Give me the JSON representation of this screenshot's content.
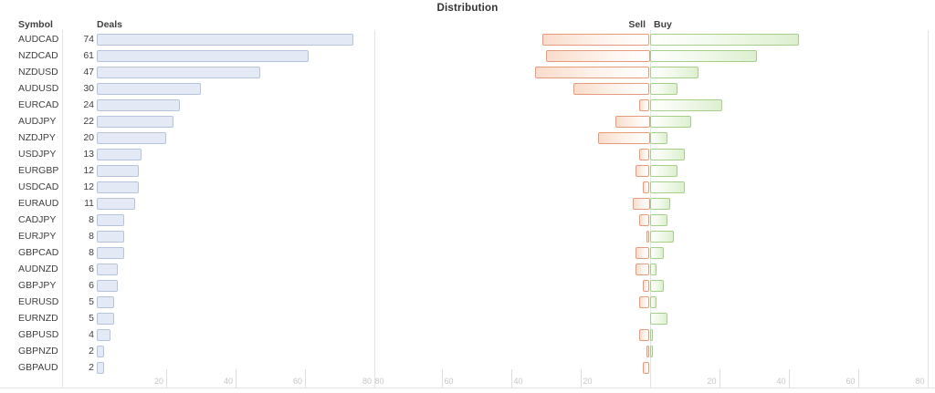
{
  "title": "Distribution",
  "headers": {
    "symbol": "Symbol",
    "deals": "Deals",
    "sell": "Sell",
    "buy": "Buy"
  },
  "colors": {
    "deals_fill": "#e4eaf5",
    "deals_border": "#b3c4db",
    "sell_border": "#e79b7e",
    "sell_fill": "#f9dccb",
    "buy_border": "#a8cf8a",
    "buy_fill": "#ddefd0",
    "grid": "#e4e4e4",
    "tick_label": "#c6c6c6",
    "text": "#3f3f3f"
  },
  "chart_data": {
    "type": "bar",
    "title": "Distribution",
    "columns": [
      "symbol",
      "deals",
      "sell",
      "buy"
    ],
    "legend": [
      "Sell",
      "Buy"
    ],
    "deals_axis": {
      "ticks": [
        20,
        40,
        60,
        80
      ],
      "max": 80
    },
    "distribution_axis": {
      "ticks_left": [
        80,
        60,
        40,
        20
      ],
      "ticks_right": [
        20,
        40,
        60,
        80
      ],
      "max": 80
    },
    "rows": [
      {
        "symbol": "AUDCAD",
        "deals": 74,
        "sell": 31,
        "buy": 43
      },
      {
        "symbol": "NZDCAD",
        "deals": 61,
        "sell": 30,
        "buy": 31
      },
      {
        "symbol": "NZDUSD",
        "deals": 47,
        "sell": 33,
        "buy": 14
      },
      {
        "symbol": "AUDUSD",
        "deals": 30,
        "sell": 22,
        "buy": 8
      },
      {
        "symbol": "EURCAD",
        "deals": 24,
        "sell": 3,
        "buy": 21
      },
      {
        "symbol": "AUDJPY",
        "deals": 22,
        "sell": 10,
        "buy": 12
      },
      {
        "symbol": "NZDJPY",
        "deals": 20,
        "sell": 15,
        "buy": 5
      },
      {
        "symbol": "USDJPY",
        "deals": 13,
        "sell": 3,
        "buy": 10
      },
      {
        "symbol": "EURGBP",
        "deals": 12,
        "sell": 4,
        "buy": 8
      },
      {
        "symbol": "USDCAD",
        "deals": 12,
        "sell": 2,
        "buy": 10
      },
      {
        "symbol": "EURAUD",
        "deals": 11,
        "sell": 5,
        "buy": 6
      },
      {
        "symbol": "CADJPY",
        "deals": 8,
        "sell": 3,
        "buy": 5
      },
      {
        "symbol": "EURJPY",
        "deals": 8,
        "sell": 1,
        "buy": 7
      },
      {
        "symbol": "GBPCAD",
        "deals": 8,
        "sell": 4,
        "buy": 4
      },
      {
        "symbol": "AUDNZD",
        "deals": 6,
        "sell": 4,
        "buy": 2
      },
      {
        "symbol": "GBPJPY",
        "deals": 6,
        "sell": 2,
        "buy": 4
      },
      {
        "symbol": "EURUSD",
        "deals": 5,
        "sell": 3,
        "buy": 2
      },
      {
        "symbol": "EURNZD",
        "deals": 5,
        "sell": 0,
        "buy": 5
      },
      {
        "symbol": "GBPUSD",
        "deals": 4,
        "sell": 3,
        "buy": 1
      },
      {
        "symbol": "GBPNZD",
        "deals": 2,
        "sell": 1,
        "buy": 1
      },
      {
        "symbol": "GBPAUD",
        "deals": 2,
        "sell": 2,
        "buy": 0
      }
    ]
  }
}
